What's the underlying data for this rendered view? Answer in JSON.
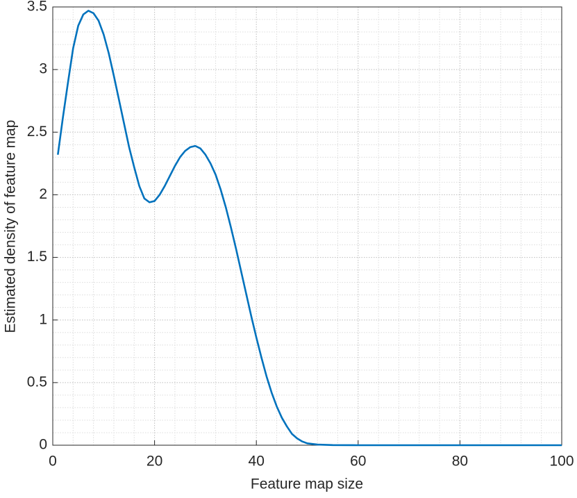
{
  "chart_data": {
    "type": "line",
    "xlabel": "Feature map size",
    "ylabel": "Estimated density of feature map",
    "x": [
      1,
      2,
      3,
      4,
      5,
      6,
      7,
      8,
      9,
      10,
      11,
      12,
      13,
      14,
      15,
      16,
      17,
      18,
      19,
      20,
      21,
      22,
      23,
      24,
      25,
      26,
      27,
      28,
      29,
      30,
      31,
      32,
      33,
      34,
      35,
      36,
      37,
      38,
      39,
      40,
      41,
      42,
      43,
      44,
      45,
      46,
      47,
      48,
      49,
      50,
      52,
      55,
      60,
      70,
      80,
      90,
      100
    ],
    "series": [
      {
        "color": "#0072bd",
        "values": [
          2.32,
          2.62,
          2.9,
          3.17,
          3.35,
          3.44,
          3.47,
          3.45,
          3.39,
          3.28,
          3.13,
          2.95,
          2.76,
          2.57,
          2.38,
          2.22,
          2.07,
          1.97,
          1.94,
          1.95,
          2.0,
          2.07,
          2.15,
          2.23,
          2.3,
          2.35,
          2.38,
          2.39,
          2.37,
          2.32,
          2.25,
          2.16,
          2.04,
          1.9,
          1.74,
          1.57,
          1.39,
          1.21,
          1.03,
          0.86,
          0.7,
          0.55,
          0.42,
          0.31,
          0.22,
          0.15,
          0.09,
          0.055,
          0.03,
          0.015,
          0.005,
          0.001,
          0,
          0,
          0,
          0,
          0
        ]
      }
    ],
    "xlim": [
      0,
      100
    ],
    "xticks": [
      0,
      20,
      40,
      60,
      80,
      100
    ],
    "ylim": [
      0,
      3.5
    ],
    "yticks": [
      0,
      0.5,
      1,
      1.5,
      2,
      2.5,
      3,
      3.5
    ],
    "grid": true,
    "minor_grid": true
  }
}
